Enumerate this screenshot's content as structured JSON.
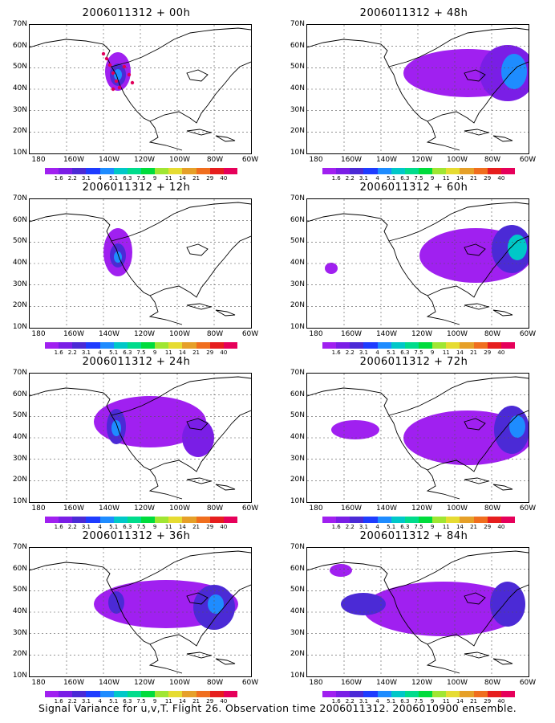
{
  "panels": [
    {
      "title": "2006011312 + 00h"
    },
    {
      "title": "2006011312 + 48h"
    },
    {
      "title": "2006011312 + 12h"
    },
    {
      "title": "2006011312 + 60h"
    },
    {
      "title": "2006011312 + 24h"
    },
    {
      "title": "2006011312 + 72h"
    },
    {
      "title": "2006011312 + 36h"
    },
    {
      "title": "2006011312 + 84h"
    }
  ],
  "lat_labels": [
    "70N",
    "60N",
    "50N",
    "40N",
    "30N",
    "20N",
    "10N"
  ],
  "lon_labels": [
    "180",
    "160W",
    "140W",
    "120W",
    "100W",
    "80W",
    "60W"
  ],
  "colorbar": {
    "labels": [
      "1.6",
      "2.2",
      "3.1",
      "4",
      "5.1",
      "6.3",
      "7.5",
      "9",
      "11",
      "14",
      "21",
      "29",
      "40"
    ],
    "colors": [
      "#a020f0",
      "#7a1ee6",
      "#4b2ad6",
      "#1e3cff",
      "#1e8cff",
      "#00c8c8",
      "#00dc8c",
      "#00dc3c",
      "#a0e632",
      "#e6dc32",
      "#e6a028",
      "#f06e1e",
      "#e61e1e",
      "#e6005a"
    ]
  },
  "caption": "Signal Variance for u,v,T. Flight 26. Observation time 2006011312. 2006010900 ensemble."
}
